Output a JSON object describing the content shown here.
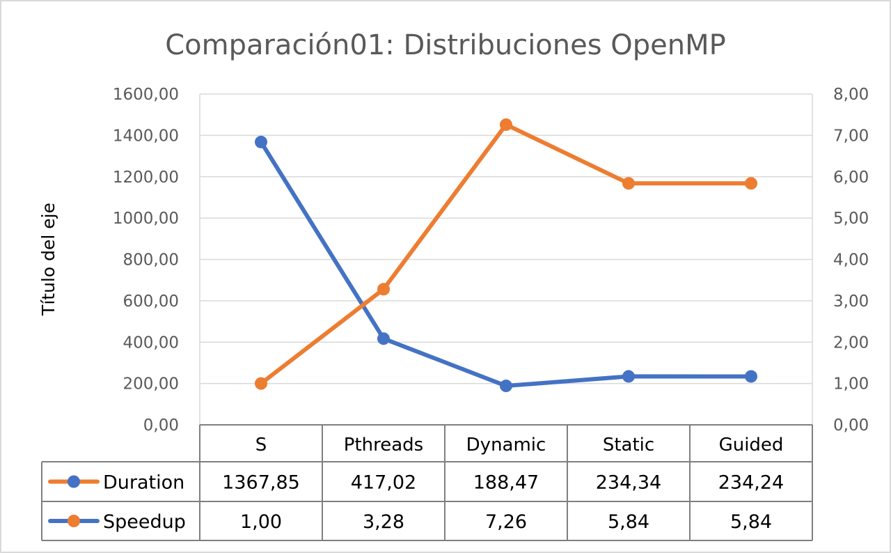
{
  "chart_data": {
    "type": "line",
    "title": "Comparación01: Distribuciones OpenMP",
    "ylabel": "Título del eje",
    "categories": [
      "S",
      "Pthreads",
      "Dynamic",
      "Static",
      "Guided"
    ],
    "primary_axis": {
      "ylim": [
        0,
        1600
      ],
      "ticks": [
        "0,00",
        "200,00",
        "400,00",
        "600,00",
        "800,00",
        "1000,00",
        "1200,00",
        "1400,00",
        "1600,00"
      ]
    },
    "secondary_axis": {
      "ylim": [
        0,
        8
      ],
      "ticks": [
        "0,00",
        "1,00",
        "2,00",
        "3,00",
        "4,00",
        "5,00",
        "6,00",
        "7,00",
        "8,00"
      ]
    },
    "grid": true,
    "data_table": true,
    "series": [
      {
        "name": "Duration",
        "axis": "primary",
        "values": [
          1367.85,
          417.02,
          188.47,
          234.34,
          234.24
        ],
        "labels": [
          "1367,85",
          "417,02",
          "188,47",
          "234,34",
          "234,24"
        ],
        "line_color": "#4472c4",
        "marker_color": "#4472c4",
        "legend_line_color": "#ed7d31",
        "legend_marker_color": "#4472c4"
      },
      {
        "name": "Speedup",
        "axis": "secondary",
        "values": [
          1.0,
          3.28,
          7.26,
          5.84,
          5.84
        ],
        "labels": [
          "1,00",
          "3,28",
          "7,26",
          "5,84",
          "5,84"
        ],
        "line_color": "#ed7d31",
        "marker_color": "#ed7d31",
        "legend_line_color": "#4472c4",
        "legend_marker_color": "#ed7d31"
      }
    ]
  }
}
